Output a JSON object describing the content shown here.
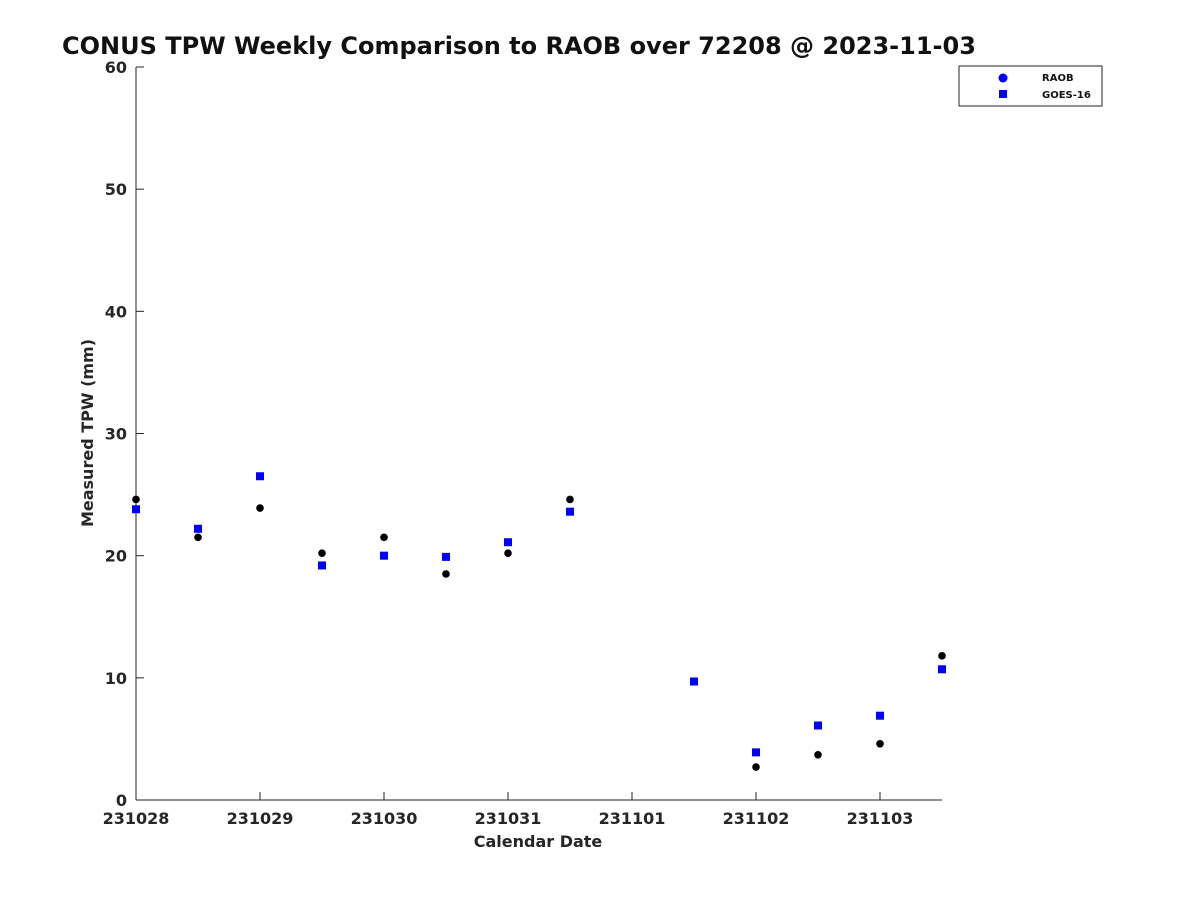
{
  "chart_data": {
    "type": "scatter",
    "title": "CONUS TPW Weekly Comparison to RAOB over 72208 @ 2023-11-03",
    "xlabel": "Calendar Date",
    "ylabel": "Measured TPW (mm)",
    "xlim": [
      "2023-10-28 00:00",
      "2023-11-03 12:00"
    ],
    "ylim": [
      0,
      60
    ],
    "x_ticks": [
      "231028",
      "231029",
      "231030",
      "231031",
      "231101",
      "231102",
      "231103"
    ],
    "y_ticks": [
      0,
      10,
      20,
      30,
      40,
      50,
      60
    ],
    "grid": false,
    "legend_position": "top-right",
    "series": [
      {
        "name": "RAOB",
        "marker": "circle",
        "color": "#000000",
        "points": [
          {
            "x": "2023-10-28 00:00",
            "y": 24.6
          },
          {
            "x": "2023-10-28 12:00",
            "y": 21.5
          },
          {
            "x": "2023-10-29 00:00",
            "y": 23.9
          },
          {
            "x": "2023-10-29 12:00",
            "y": 20.2
          },
          {
            "x": "2023-10-30 00:00",
            "y": 21.5
          },
          {
            "x": "2023-10-30 12:00",
            "y": 18.5
          },
          {
            "x": "2023-10-31 00:00",
            "y": 20.2
          },
          {
            "x": "2023-10-31 12:00",
            "y": 24.6
          },
          {
            "x": "2023-11-01 12:00",
            "y": 9.7
          },
          {
            "x": "2023-11-02 00:00",
            "y": 2.7
          },
          {
            "x": "2023-11-02 12:00",
            "y": 3.7
          },
          {
            "x": "2023-11-03 00:00",
            "y": 4.6
          },
          {
            "x": "2023-11-03 12:00",
            "y": 11.8
          }
        ]
      },
      {
        "name": "GOES-16",
        "marker": "square",
        "color": "#0000ff",
        "legend_marker": "circle",
        "points": [
          {
            "x": "2023-10-28 00:00",
            "y": 23.8
          },
          {
            "x": "2023-10-28 12:00",
            "y": 22.2
          },
          {
            "x": "2023-10-29 00:00",
            "y": 26.5
          },
          {
            "x": "2023-10-29 12:00",
            "y": 19.2
          },
          {
            "x": "2023-10-30 00:00",
            "y": 20.0
          },
          {
            "x": "2023-10-30 12:00",
            "y": 19.9
          },
          {
            "x": "2023-10-31 00:00",
            "y": 21.1
          },
          {
            "x": "2023-10-31 12:00",
            "y": 23.6
          },
          {
            "x": "2023-11-01 12:00",
            "y": 9.7
          },
          {
            "x": "2023-11-02 00:00",
            "y": 3.9
          },
          {
            "x": "2023-11-02 12:00",
            "y": 6.1
          },
          {
            "x": "2023-11-03 00:00",
            "y": 6.9
          },
          {
            "x": "2023-11-03 12:00",
            "y": 10.7
          }
        ]
      }
    ]
  }
}
